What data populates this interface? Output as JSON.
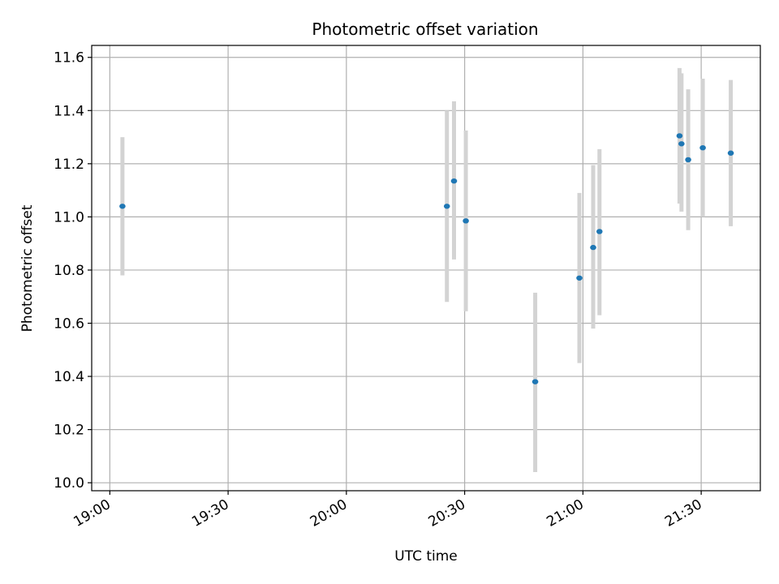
{
  "chart_data": {
    "type": "scatter",
    "title": "Photometric offset variation",
    "xlabel": "UTC time",
    "ylabel": "Photometric offset",
    "x_ticks": [
      {
        "label": "19:00",
        "minutes": 0
      },
      {
        "label": "19:30",
        "minutes": 30
      },
      {
        "label": "20:00",
        "minutes": 60
      },
      {
        "label": "20:30",
        "minutes": 90
      },
      {
        "label": "21:00",
        "minutes": 120
      },
      {
        "label": "21:30",
        "minutes": 150
      }
    ],
    "y_ticks": [
      "10.0",
      "10.2",
      "10.4",
      "10.6",
      "10.8",
      "11.0",
      "11.2",
      "11.4",
      "11.6"
    ],
    "xlim_minutes_after_1900": [
      -4.6,
      165
    ],
    "ylim": [
      9.97,
      11.645
    ],
    "grid": true,
    "marker_color": "#1f77b4",
    "errorbar_color": "#d3d3d3",
    "points": [
      {
        "time": "19:03",
        "minutes": 3.2,
        "y": 11.04,
        "yerr_low": 10.78,
        "yerr_high": 11.3
      },
      {
        "time": "20:25",
        "minutes": 85.5,
        "y": 11.04,
        "yerr_low": 10.68,
        "yerr_high": 11.4
      },
      {
        "time": "20:27",
        "minutes": 87.3,
        "y": 11.135,
        "yerr_low": 10.84,
        "yerr_high": 11.435
      },
      {
        "time": "20:30",
        "minutes": 90.3,
        "y": 10.985,
        "yerr_low": 10.645,
        "yerr_high": 11.325
      },
      {
        "time": "20:48",
        "minutes": 107.9,
        "y": 10.38,
        "yerr_low": 10.04,
        "yerr_high": 10.715
      },
      {
        "time": "20:59",
        "minutes": 119.1,
        "y": 10.77,
        "yerr_low": 10.45,
        "yerr_high": 11.09
      },
      {
        "time": "21:03",
        "minutes": 122.6,
        "y": 10.885,
        "yerr_low": 10.58,
        "yerr_high": 11.195
      },
      {
        "time": "21:04",
        "minutes": 124.2,
        "y": 10.945,
        "yerr_low": 10.63,
        "yerr_high": 11.255
      },
      {
        "time": "21:24",
        "minutes": 144.5,
        "y": 11.305,
        "yerr_low": 11.05,
        "yerr_high": 11.56
      },
      {
        "time": "21:25",
        "minutes": 145.0,
        "y": 11.275,
        "yerr_low": 11.02,
        "yerr_high": 11.54
      },
      {
        "time": "21:27",
        "minutes": 146.7,
        "y": 11.215,
        "yerr_low": 10.95,
        "yerr_high": 11.48
      },
      {
        "time": "21:30",
        "minutes": 150.4,
        "y": 11.26,
        "yerr_low": 11.0,
        "yerr_high": 11.52
      },
      {
        "time": "21:37",
        "minutes": 157.5,
        "y": 11.24,
        "yerr_low": 10.965,
        "yerr_high": 11.515
      }
    ]
  }
}
